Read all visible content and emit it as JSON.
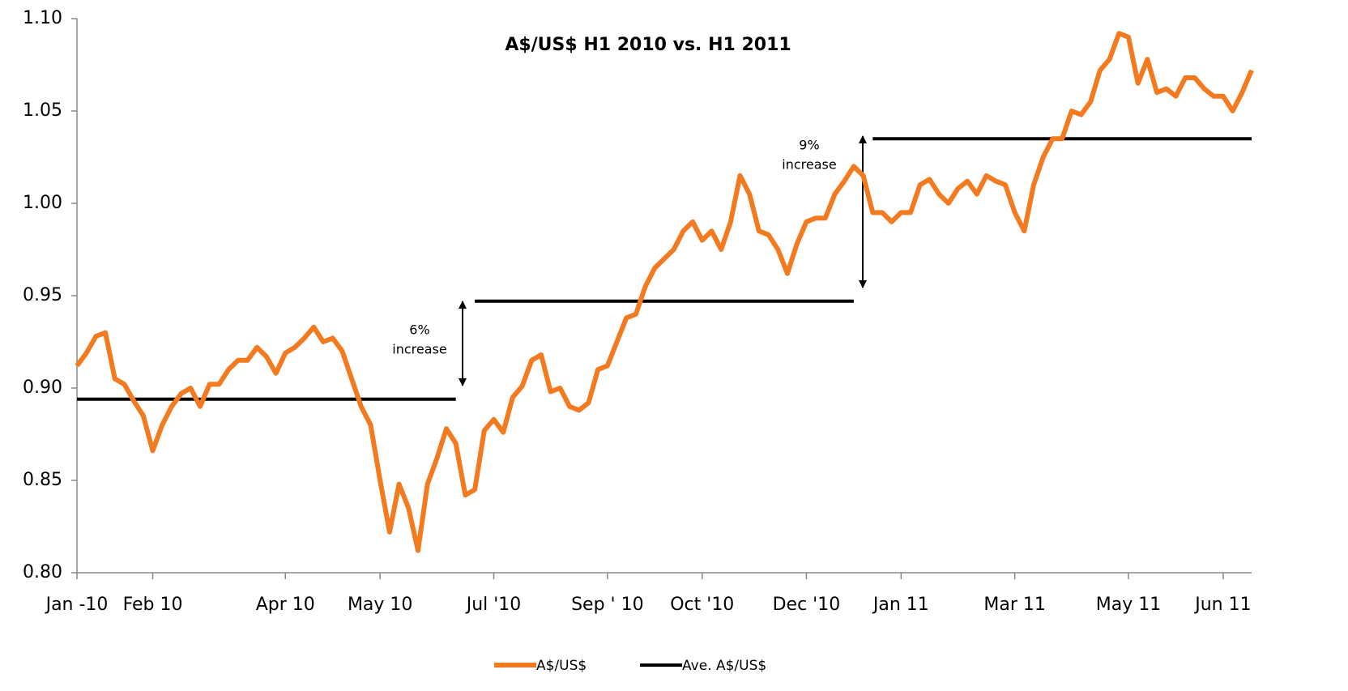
{
  "chart_data": {
    "type": "line",
    "title": "A$/US$ H1 2010 vs. H1 2011",
    "categories": [
      "Jan -10",
      null,
      null,
      null,
      null,
      null,
      null,
      null,
      "Feb 10",
      null,
      null,
      null,
      null,
      null,
      null,
      null,
      null,
      null,
      null,
      null,
      null,
      null,
      "Apr 10",
      null,
      null,
      null,
      null,
      null,
      null,
      null,
      null,
      null,
      "May 10",
      null,
      null,
      null,
      null,
      null,
      null,
      null,
      null,
      null,
      null,
      null,
      "Jul '10",
      null,
      null,
      null,
      null,
      null,
      null,
      null,
      null,
      null,
      null,
      null,
      "Sep ' 10",
      null,
      null,
      null,
      null,
      null,
      null,
      null,
      null,
      null,
      "Oct '10",
      null,
      null,
      null,
      null,
      null,
      null,
      null,
      null,
      null,
      null,
      "Dec '10",
      null,
      null,
      null,
      null,
      null,
      null,
      null,
      null,
      null,
      "Jan 11",
      null,
      null,
      null,
      null,
      null,
      null,
      null,
      null,
      null,
      null,
      null,
      "Mar 11",
      null,
      null,
      null,
      null,
      null,
      null,
      null,
      null,
      null,
      null,
      null,
      "May 11",
      null,
      null,
      null,
      null,
      null,
      null,
      null,
      null,
      null,
      "Jun 11",
      null,
      null,
      null
    ],
    "series": [
      {
        "name": "A$/US$",
        "color": "#f47a1f",
        "values": [
          0.912,
          0.919,
          0.928,
          0.93,
          0.905,
          0.902,
          0.893,
          0.885,
          0.866,
          0.88,
          0.89,
          0.897,
          0.9,
          0.89,
          0.902,
          0.902,
          0.91,
          0.915,
          0.915,
          0.922,
          0.917,
          0.908,
          0.919,
          0.922,
          0.927,
          0.933,
          0.925,
          0.927,
          0.92,
          0.905,
          0.89,
          0.88,
          0.85,
          0.822,
          0.848,
          0.835,
          0.812,
          0.848,
          0.862,
          0.878,
          0.87,
          0.842,
          0.845,
          0.877,
          0.883,
          0.876,
          0.895,
          0.901,
          0.915,
          0.918,
          0.898,
          0.9,
          0.89,
          0.888,
          0.892,
          0.91,
          0.912,
          0.925,
          0.938,
          0.94,
          0.955,
          0.965,
          0.97,
          0.975,
          0.985,
          0.99,
          0.98,
          0.985,
          0.975,
          0.99,
          1.015,
          1.005,
          0.985,
          0.983,
          0.975,
          0.962,
          0.978,
          0.99,
          0.992,
          0.992,
          1.005,
          1.012,
          1.02,
          1.015,
          0.995,
          0.995,
          0.99,
          0.995,
          0.995,
          1.01,
          1.013,
          1.005,
          1.0,
          1.008,
          1.012,
          1.005,
          1.015,
          1.012,
          1.01,
          0.995,
          0.985,
          1.01,
          1.025,
          1.035,
          1.035,
          1.05,
          1.048,
          1.055,
          1.072,
          1.078,
          1.092,
          1.09,
          1.065,
          1.078,
          1.06,
          1.062,
          1.058,
          1.068,
          1.068,
          1.062,
          1.058,
          1.058,
          1.05,
          1.06,
          1.072
        ]
      },
      {
        "name": "Ave. A$/US$",
        "color": "#000000",
        "values": [
          0.894,
          0.894,
          0.894,
          0.894,
          0.894,
          0.894,
          0.894,
          0.894,
          0.894,
          0.894,
          0.894,
          0.894,
          0.894,
          0.894,
          0.894,
          0.894,
          0.894,
          0.894,
          0.894,
          0.894,
          0.894,
          0.894,
          0.894,
          0.894,
          0.894,
          0.894,
          0.894,
          0.894,
          0.894,
          0.894,
          0.894,
          0.894,
          0.894,
          0.894,
          0.894,
          0.894,
          0.894,
          0.894,
          0.894,
          0.894,
          0.894,
          null,
          0.947,
          0.947,
          0.947,
          0.947,
          0.947,
          0.947,
          0.947,
          0.947,
          0.947,
          0.947,
          0.947,
          0.947,
          0.947,
          0.947,
          0.947,
          0.947,
          0.947,
          0.947,
          0.947,
          0.947,
          0.947,
          0.947,
          0.947,
          0.947,
          0.947,
          0.947,
          0.947,
          0.947,
          0.947,
          0.947,
          0.947,
          0.947,
          0.947,
          0.947,
          0.947,
          0.947,
          0.947,
          0.947,
          0.947,
          0.947,
          0.947,
          null,
          1.035,
          1.035,
          1.035,
          1.035,
          1.035,
          1.035,
          1.035,
          1.035,
          1.035,
          1.035,
          1.035,
          1.035,
          1.035,
          1.035,
          1.035,
          1.035,
          1.035,
          1.035,
          1.035,
          1.035,
          1.035,
          1.035,
          1.035,
          1.035,
          1.035,
          1.035,
          1.035,
          1.035,
          1.035,
          1.035,
          1.035,
          1.035,
          1.035,
          1.035,
          1.035,
          1.035,
          1.035,
          1.035,
          1.035,
          1.035,
          1.035
        ]
      }
    ],
    "ylim": [
      0.8,
      1.1
    ],
    "yticks": [
      {
        "value": 0.8,
        "label": "0.80"
      },
      0.85,
      {
        "value": 0.9,
        "label": "0.90"
      },
      0.95,
      {
        "value": 1.0,
        "label": "1.00"
      },
      1.05,
      {
        "value": 1.1,
        "label": "1.10"
      }
    ],
    "legend": "bottom",
    "annotations": [
      {
        "lines": [
          "6%",
          "increase"
        ]
      },
      {
        "lines": [
          "9%",
          "increase"
        ]
      }
    ]
  }
}
